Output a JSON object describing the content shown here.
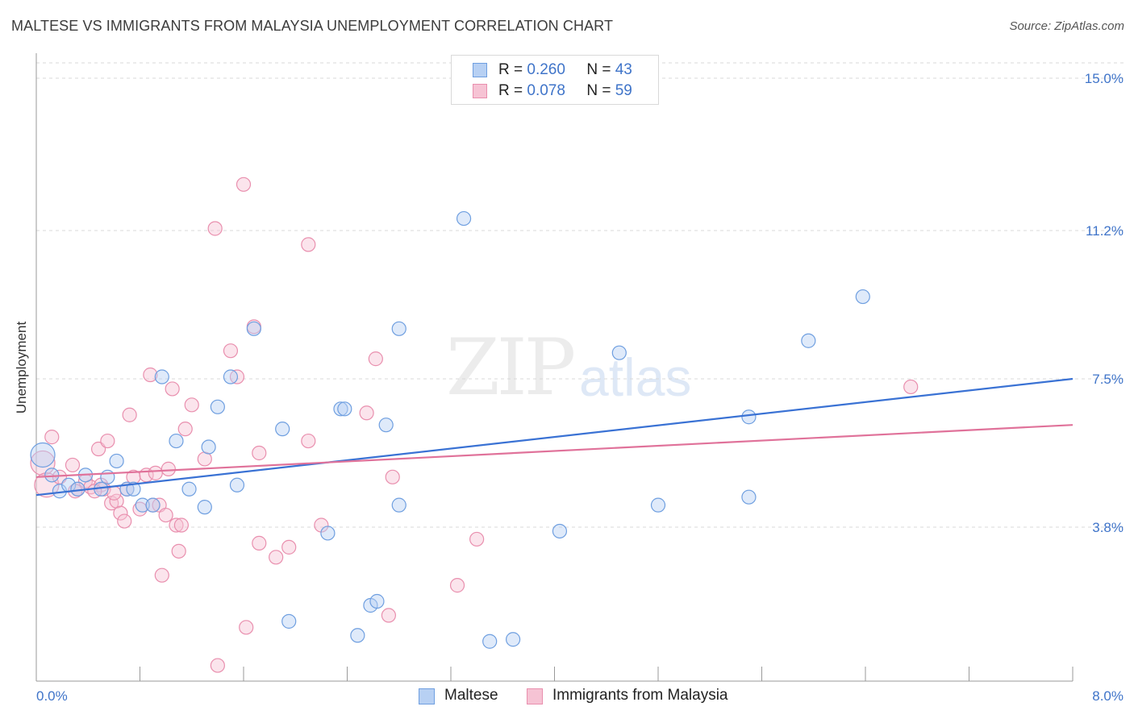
{
  "header": {
    "title": "MALTESE VS IMMIGRANTS FROM MALAYSIA UNEMPLOYMENT CORRELATION CHART",
    "source": "Source: ZipAtlas.com"
  },
  "watermark": {
    "part1": "ZIP",
    "part2": "atlas"
  },
  "legend": {
    "r_label": "R =",
    "n_label": "N =",
    "entries": [
      {
        "r": "0.260",
        "n": "43",
        "color": "#6f9fe0",
        "fill": "#b7d0f3"
      },
      {
        "r": "0.078",
        "n": "59",
        "color": "#e98fae",
        "fill": "#f6c3d4"
      }
    ]
  },
  "colors": {
    "blue": "#3a72d4",
    "pink": "#e0729a",
    "tick_text": "#3f74c9"
  },
  "chart_data": {
    "type": "scatter",
    "title": "MALTESE VS IMMIGRANTS FROM MALAYSIA UNEMPLOYMENT CORRELATION CHART",
    "xlabel": "",
    "ylabel": "Unemployment",
    "xlim": [
      0,
      8
    ],
    "ylim": [
      0,
      15.5
    ],
    "x_tick_labels": [
      "0.0%",
      "8.0%"
    ],
    "y_ticks": [
      3.8,
      7.5,
      11.2,
      15.0
    ],
    "y_tick_labels": [
      "3.8%",
      "7.5%",
      "11.2%",
      "15.0%"
    ],
    "grid": "horizontal dashed",
    "legend_position": "top-center",
    "series": [
      {
        "name": "Maltese",
        "color": "#6f9fe0",
        "trend": {
          "x0": 0,
          "y0": 4.6,
          "x1": 8,
          "y1": 7.5
        },
        "points": [
          [
            0.05,
            5.6,
            1
          ],
          [
            0.12,
            5.1,
            0
          ],
          [
            0.18,
            4.7,
            0
          ],
          [
            0.25,
            4.85,
            0
          ],
          [
            0.32,
            4.75,
            0
          ],
          [
            0.38,
            5.1,
            0
          ],
          [
            0.55,
            5.05,
            0
          ],
          [
            0.62,
            5.45,
            0
          ],
          [
            0.7,
            4.75,
            0
          ],
          [
            0.82,
            4.35,
            0
          ],
          [
            0.9,
            4.35,
            0
          ],
          [
            0.97,
            7.55,
            0
          ],
          [
            1.08,
            5.95,
            0
          ],
          [
            1.18,
            4.75,
            0
          ],
          [
            1.33,
            5.8,
            0
          ],
          [
            1.4,
            6.8,
            0
          ],
          [
            1.5,
            7.55,
            0
          ],
          [
            1.55,
            4.85,
            0
          ],
          [
            1.68,
            8.75,
            0
          ],
          [
            1.9,
            6.25,
            0
          ],
          [
            1.95,
            1.45,
            0
          ],
          [
            2.25,
            3.65,
            0
          ],
          [
            2.35,
            6.75,
            0
          ],
          [
            2.38,
            6.75,
            0
          ],
          [
            2.48,
            1.1,
            0
          ],
          [
            2.58,
            1.85,
            0
          ],
          [
            2.63,
            1.95,
            0
          ],
          [
            2.7,
            6.35,
            0
          ],
          [
            2.8,
            4.35,
            0
          ],
          [
            2.8,
            8.75,
            0
          ],
          [
            3.3,
            11.5,
            0
          ],
          [
            3.5,
            0.95,
            0
          ],
          [
            3.68,
            1.0,
            0
          ],
          [
            4.04,
            3.7,
            0
          ],
          [
            4.5,
            8.15,
            0
          ],
          [
            4.8,
            4.35,
            0
          ],
          [
            5.5,
            4.55,
            0
          ],
          [
            5.5,
            6.55,
            0
          ],
          [
            5.96,
            8.45,
            0
          ],
          [
            6.38,
            9.55,
            0
          ],
          [
            0.5,
            4.75,
            0
          ],
          [
            0.75,
            4.75,
            0
          ],
          [
            1.3,
            4.3,
            0
          ]
        ]
      },
      {
        "name": "Immigrants from Malaysia",
        "color": "#e98fae",
        "trend": {
          "x0": 0,
          "y0": 5.05,
          "x1": 8,
          "y1": 6.35
        },
        "points": [
          [
            0.05,
            5.4,
            1
          ],
          [
            0.08,
            4.85,
            1
          ],
          [
            0.12,
            6.05,
            0
          ],
          [
            0.18,
            5.05,
            0
          ],
          [
            0.28,
            5.35,
            0
          ],
          [
            0.32,
            4.75,
            0
          ],
          [
            0.38,
            4.95,
            0
          ],
          [
            0.42,
            4.8,
            0
          ],
          [
            0.48,
            5.75,
            0
          ],
          [
            0.5,
            4.85,
            0
          ],
          [
            0.52,
            4.75,
            0
          ],
          [
            0.55,
            5.95,
            0
          ],
          [
            0.58,
            4.4,
            0
          ],
          [
            0.62,
            4.45,
            0
          ],
          [
            0.65,
            4.15,
            0
          ],
          [
            0.68,
            3.95,
            0
          ],
          [
            0.7,
            4.75,
            0
          ],
          [
            0.72,
            6.6,
            0
          ],
          [
            0.75,
            5.05,
            0
          ],
          [
            0.8,
            4.25,
            0
          ],
          [
            0.85,
            5.1,
            0
          ],
          [
            0.88,
            7.6,
            0
          ],
          [
            0.9,
            4.35,
            0
          ],
          [
            0.92,
            5.15,
            0
          ],
          [
            0.95,
            4.35,
            0
          ],
          [
            0.97,
            2.6,
            0
          ],
          [
            1.0,
            4.1,
            0
          ],
          [
            1.02,
            5.25,
            0
          ],
          [
            1.05,
            7.25,
            0
          ],
          [
            1.08,
            3.85,
            0
          ],
          [
            1.1,
            3.2,
            0
          ],
          [
            1.12,
            3.85,
            0
          ],
          [
            1.15,
            6.25,
            0
          ],
          [
            1.2,
            6.85,
            0
          ],
          [
            1.3,
            5.5,
            0
          ],
          [
            1.38,
            11.25,
            0
          ],
          [
            1.4,
            0.35,
            0
          ],
          [
            1.5,
            8.2,
            0
          ],
          [
            1.55,
            7.55,
            0
          ],
          [
            1.6,
            12.35,
            0
          ],
          [
            1.62,
            1.3,
            0
          ],
          [
            1.68,
            8.8,
            0
          ],
          [
            1.72,
            3.4,
            0
          ],
          [
            1.72,
            5.65,
            0
          ],
          [
            1.85,
            3.05,
            0
          ],
          [
            1.95,
            3.3,
            0
          ],
          [
            2.1,
            5.95,
            0
          ],
          [
            2.1,
            10.85,
            0
          ],
          [
            2.2,
            3.85,
            0
          ],
          [
            2.55,
            6.65,
            0
          ],
          [
            2.62,
            8.0,
            0
          ],
          [
            2.72,
            1.6,
            0
          ],
          [
            2.75,
            5.05,
            0
          ],
          [
            3.25,
            2.35,
            0
          ],
          [
            3.4,
            3.5,
            0
          ],
          [
            6.75,
            7.3,
            0
          ],
          [
            0.3,
            4.7,
            0
          ],
          [
            0.45,
            4.7,
            0
          ],
          [
            0.6,
            4.65,
            0
          ]
        ]
      }
    ]
  },
  "bottom_legend": [
    {
      "label": "Maltese",
      "color": "#6f9fe0",
      "fill": "#b7d0f3"
    },
    {
      "label": "Immigrants from Malaysia",
      "color": "#e98fae",
      "fill": "#f6c3d4"
    }
  ]
}
